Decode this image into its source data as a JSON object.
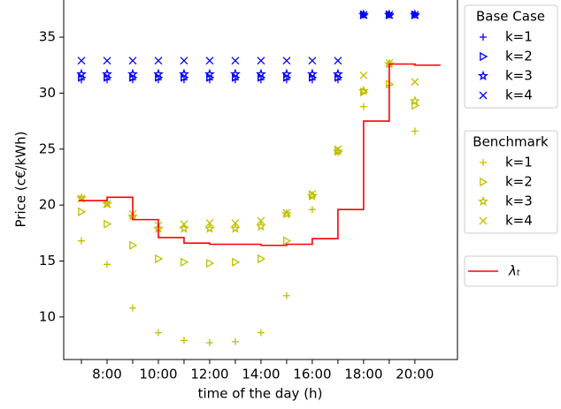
{
  "chart_data": {
    "type": "scatter",
    "xlabel": "time of the day (h)",
    "ylabel": "Price (c€/kWh)",
    "xlim": [
      6.31,
      21.66
    ],
    "ylim": [
      6.2,
      38.4
    ],
    "xticks": [
      {
        "value": 8,
        "label": "8:00"
      },
      {
        "value": 10,
        "label": "10:00"
      },
      {
        "value": 12,
        "label": "12:00"
      },
      {
        "value": 14,
        "label": "14:00"
      },
      {
        "value": 16,
        "label": "16:00"
      },
      {
        "value": 18,
        "label": "18:00"
      },
      {
        "value": 20,
        "label": "20:00"
      }
    ],
    "xminorticks": [
      7,
      9,
      11,
      13,
      15,
      17,
      19
    ],
    "yticks": [
      10,
      15,
      20,
      25,
      30,
      35
    ],
    "series_groups": [
      {
        "title": "Base Case",
        "series": [
          {
            "name": "k=1",
            "color": "#0000ff",
            "marker": "+",
            "x": [
              7,
              8,
              9,
              10,
              11,
              12,
              13,
              14,
              15,
              16,
              17,
              18,
              19,
              20
            ],
            "values": [
              31.2,
              31.2,
              31.2,
              31.2,
              31.2,
              31.2,
              31.2,
              31.2,
              31.2,
              31.2,
              31.2,
              37,
              37,
              37
            ]
          },
          {
            "name": "k=2",
            "color": "#0000ff",
            "marker": ">",
            "x": [
              7,
              8,
              9,
              10,
              11,
              12,
              13,
              14,
              15,
              16,
              17,
              18,
              19,
              20
            ],
            "values": [
              31.4,
              31.4,
              31.4,
              31.4,
              31.4,
              31.4,
              31.4,
              31.4,
              31.4,
              31.4,
              31.4,
              37,
              37,
              37
            ]
          },
          {
            "name": "k=3",
            "color": "#0000ff",
            "marker": "*",
            "x": [
              7,
              8,
              9,
              10,
              11,
              12,
              13,
              14,
              15,
              16,
              17,
              18,
              19,
              20
            ],
            "values": [
              31.7,
              31.7,
              31.7,
              31.7,
              31.7,
              31.7,
              31.7,
              31.7,
              31.7,
              31.7,
              31.7,
              37,
              37,
              37
            ]
          },
          {
            "name": "k=4",
            "color": "#0000ff",
            "marker": "x",
            "x": [
              7,
              8,
              9,
              10,
              11,
              12,
              13,
              14,
              15,
              16,
              17,
              18,
              19,
              20
            ],
            "values": [
              32.9,
              32.9,
              32.9,
              32.9,
              32.9,
              32.9,
              32.9,
              32.9,
              32.9,
              32.9,
              32.9,
              37,
              37,
              37
            ]
          }
        ]
      },
      {
        "title": "Benchmark",
        "series": [
          {
            "name": "k=1",
            "color": "#bfbf00",
            "marker": "+",
            "x": [
              7,
              8,
              9,
              10,
              11,
              12,
              13,
              14,
              15,
              16,
              17,
              18,
              19,
              20
            ],
            "values": [
              16.8,
              14.7,
              10.8,
              8.6,
              7.9,
              7.7,
              7.8,
              8.6,
              11.9,
              19.6,
              24.7,
              28.8,
              30.7,
              26.6
            ]
          },
          {
            "name": "k=2",
            "color": "#bfbf00",
            "marker": ">",
            "x": [
              7,
              8,
              9,
              10,
              11,
              12,
              13,
              14,
              15,
              16,
              17,
              18,
              19,
              20
            ],
            "values": [
              19.4,
              18.3,
              16.4,
              15.2,
              14.9,
              14.8,
              14.9,
              15.2,
              16.8,
              20.9,
              24.8,
              30.1,
              30.8,
              28.9
            ]
          },
          {
            "name": "k=3",
            "color": "#bfbf00",
            "marker": "*",
            "x": [
              7,
              8,
              9,
              10,
              11,
              12,
              13,
              14,
              15,
              16,
              17,
              18,
              19,
              20
            ],
            "values": [
              20.6,
              20.1,
              19.0,
              17.9,
              17.9,
              17.9,
              17.9,
              18.1,
              19.2,
              20.8,
              24.8,
              30.2,
              32.6,
              29.3
            ]
          },
          {
            "name": "k=4",
            "color": "#bfbf00",
            "marker": "x",
            "x": [
              7,
              8,
              9,
              10,
              11,
              12,
              13,
              14,
              15,
              16,
              17,
              18,
              19,
              20
            ],
            "values": [
              20.6,
              20.1,
              19.2,
              18.2,
              18.3,
              18.4,
              18.4,
              18.6,
              19.3,
              21.0,
              25.0,
              31.6,
              32.7,
              31.0
            ]
          }
        ]
      },
      {
        "series": [
          {
            "name": "λₜ",
            "color": "#ff0000",
            "drawstyle": "steps-post",
            "x": [
              6.9,
              8,
              9,
              10,
              11,
              12,
              13,
              14,
              15,
              16,
              17,
              18,
              19,
              20,
              21
            ],
            "values": [
              20.4,
              20.7,
              18.7,
              17.1,
              16.6,
              16.5,
              16.5,
              16.4,
              16.5,
              17.0,
              19.6,
              27.5,
              32.6,
              32.5,
              32.5
            ]
          }
        ]
      }
    ]
  }
}
